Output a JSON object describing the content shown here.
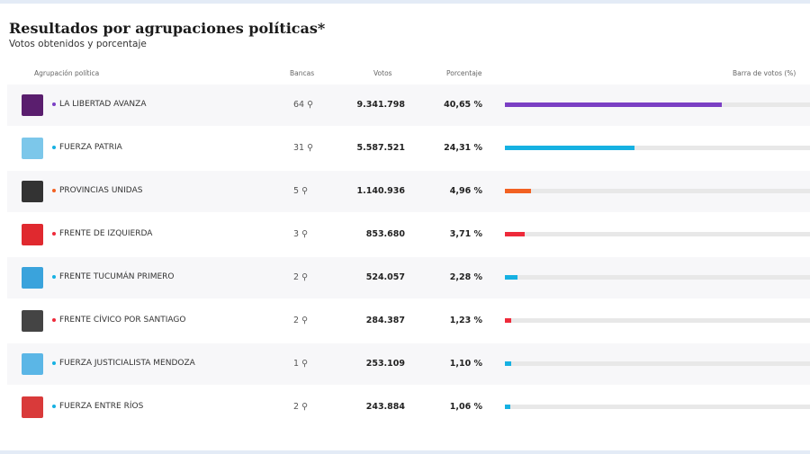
{
  "title": "Resultados por agrupaciones políticas*",
  "subtitle": "Votos obtenidos y porcentaje",
  "headers": {
    "party": "Agrupación política",
    "seats": "Bancas",
    "votes": "Votos",
    "percent": "Porcentaje",
    "bar": "Barra de votos (%)"
  },
  "rows": [
    {
      "name": "LA LIBERTAD AVANZA",
      "seats": "64",
      "votes": "9.341.798",
      "percent": "40,65 %",
      "value": 40.65,
      "color": "#7b3fc4",
      "logo": "#5a1e6e"
    },
    {
      "name": "FUERZA PATRIA",
      "seats": "31",
      "votes": "5.587.521",
      "percent": "24,31 %",
      "value": 24.31,
      "color": "#16b1e2",
      "logo": "#7cc7ea"
    },
    {
      "name": "PROVINCIAS UNIDAS",
      "seats": "5",
      "votes": "1.140.936",
      "percent": "4,96 %",
      "value": 4.96,
      "color": "#f26122",
      "logo": "#333333"
    },
    {
      "name": "FRENTE DE IZQUIERDA",
      "seats": "3",
      "votes": "853.680",
      "percent": "3,71 %",
      "value": 3.71,
      "color": "#ee2a3a",
      "logo": "#e0292f"
    },
    {
      "name": "FRENTE TUCUMÁN PRIMERO",
      "seats": "2",
      "votes": "524.057",
      "percent": "2,28 %",
      "value": 2.28,
      "color": "#16b1e2",
      "logo": "#3aa3dc"
    },
    {
      "name": "FRENTE CÍVICO POR SANTIAGO",
      "seats": "2",
      "votes": "284.387",
      "percent": "1,23 %",
      "value": 1.23,
      "color": "#ee2a3a",
      "logo": "#444444"
    },
    {
      "name": "FUERZA JUSTICIALISTA MENDOZA",
      "seats": "1",
      "votes": "253.109",
      "percent": "1,10 %",
      "value": 1.1,
      "color": "#16b1e2",
      "logo": "#5bb6e6"
    },
    {
      "name": "FUERZA ENTRE RÍOS",
      "seats": "2",
      "votes": "243.884",
      "percent": "1,06 %",
      "value": 1.06,
      "color": "#16b1e2",
      "logo": "#d93a3a"
    }
  ]
}
